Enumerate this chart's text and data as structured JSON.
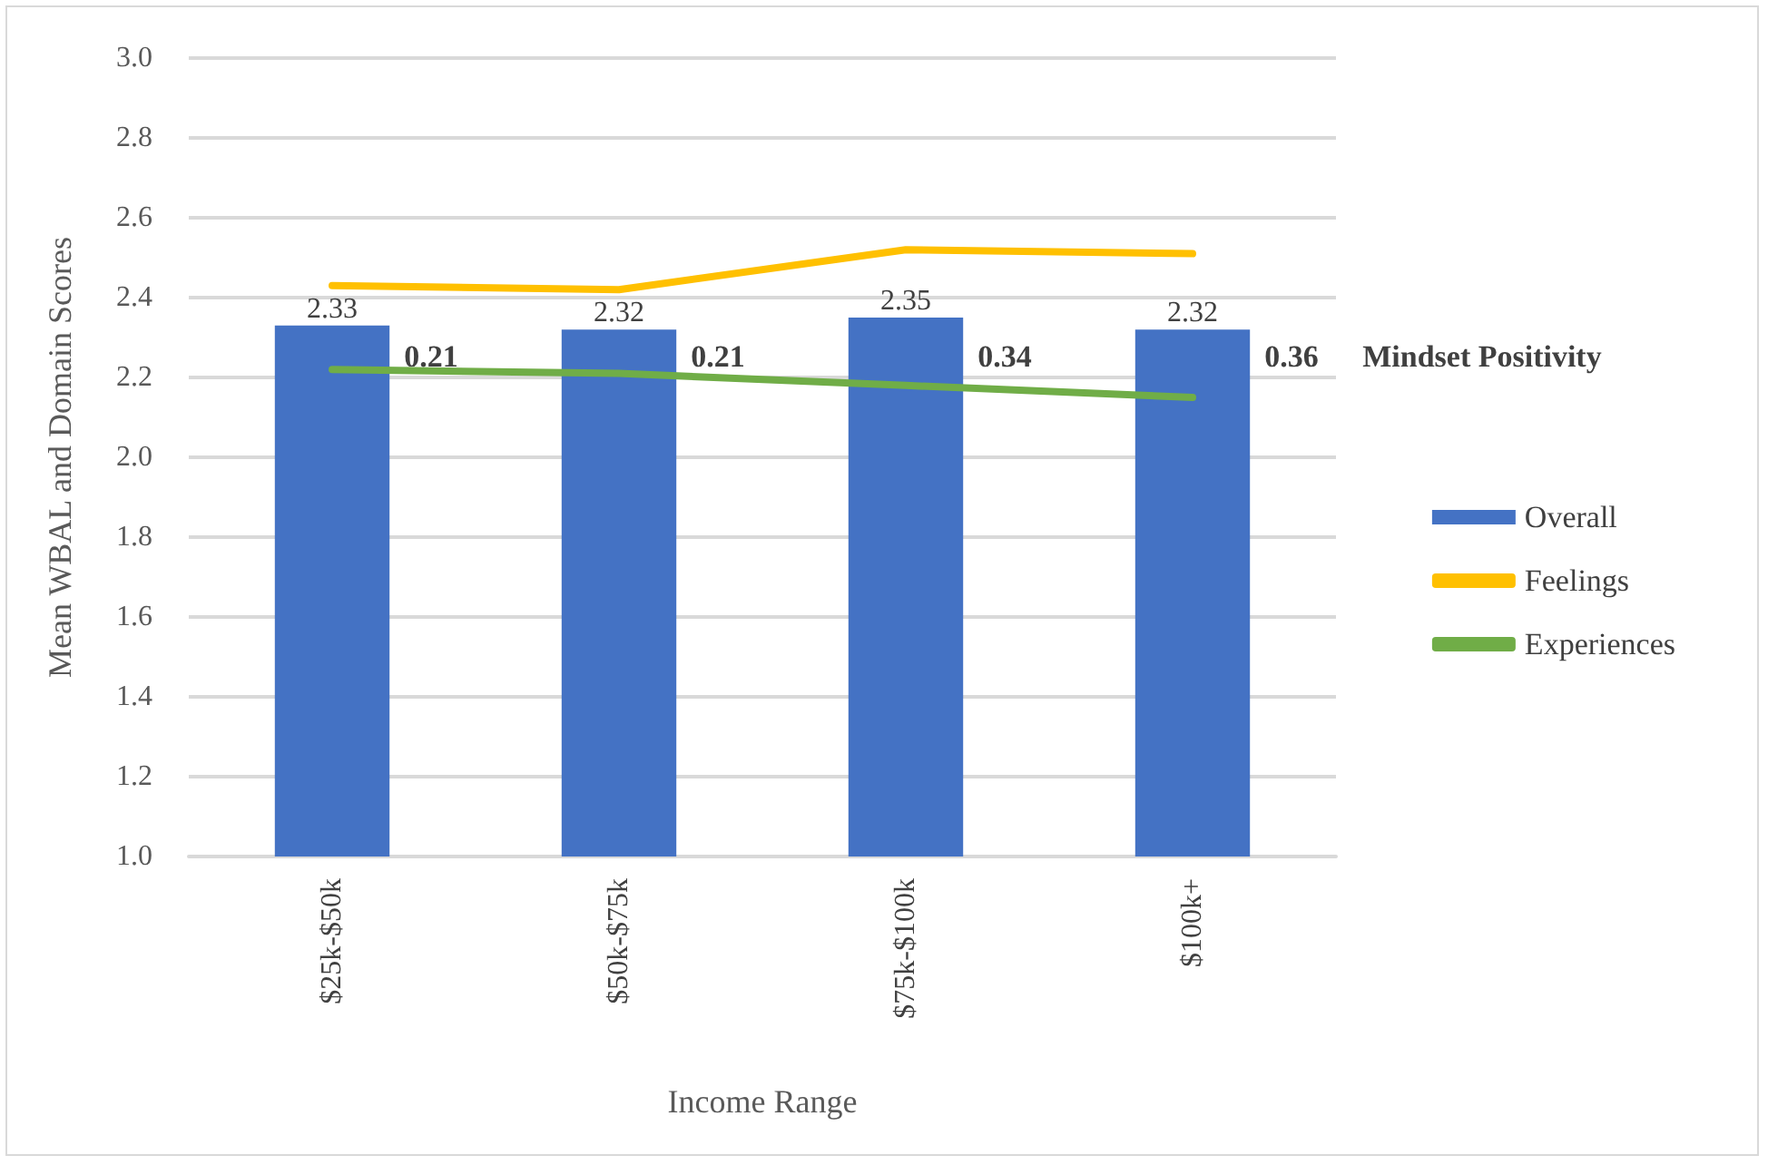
{
  "chart_data": {
    "type": "bar",
    "xlabel": "Income Range",
    "ylabel": "Mean WBAL and Domain Scores",
    "categories": [
      "$25k-$50k",
      "$50k-$75k",
      "$75k-$100k",
      "$100k+"
    ],
    "series": [
      {
        "name": "Overall",
        "color": "#4472c4",
        "values": [
          2.33,
          2.32,
          2.35,
          2.32
        ],
        "data_labels": true
      },
      {
        "name": "Feelings",
        "type": "line",
        "color": "#ffc000",
        "values": [
          2.43,
          2.42,
          2.52,
          2.51
        ]
      },
      {
        "name": "Experiences",
        "type": "line",
        "color": "#70ad47",
        "values": [
          2.22,
          2.21,
          2.18,
          2.15
        ]
      }
    ],
    "annotations": [
      "0.21",
      "0.21",
      "0.34",
      "0.36",
      "Mindset Positivity"
    ],
    "ylim": [
      1.0,
      3.0
    ],
    "yticks": [
      {
        "value": 1,
        "label": "1.0"
      },
      1.2,
      1.4,
      1.6,
      1.8,
      {
        "value": 2,
        "label": "2.0"
      },
      2.2,
      2.4,
      2.6,
      2.8,
      {
        "value": 3,
        "label": "3.0"
      }
    ],
    "grid": "y",
    "legend": "right",
    "marker": "none"
  }
}
